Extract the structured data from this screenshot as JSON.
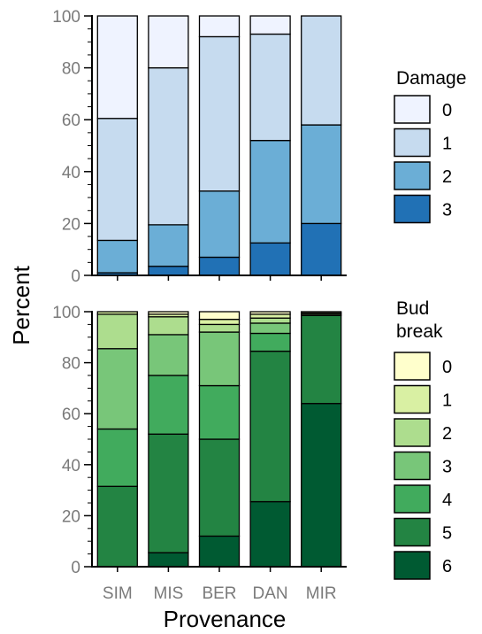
{
  "chart_data": [
    {
      "type": "bar",
      "stacked": true,
      "categories": [
        "SIM",
        "MIS",
        "BER",
        "DAN",
        "MIR"
      ],
      "ylabel": "Percent",
      "ylim": [
        0,
        100
      ],
      "yticks": [
        0,
        20,
        40,
        60,
        80,
        100
      ],
      "legend_title": "Damage",
      "legend_position": "right",
      "series": [
        {
          "name": "3",
          "color": "#2171b5",
          "values": [
            1,
            3.5,
            7,
            12.5,
            20
          ]
        },
        {
          "name": "2",
          "color": "#6baed6",
          "values": [
            12.5,
            16,
            25.5,
            39.5,
            38
          ]
        },
        {
          "name": "1",
          "color": "#c6dbef",
          "values": [
            47,
            60.5,
            59.5,
            41,
            42
          ]
        },
        {
          "name": "0",
          "color": "#eff3ff",
          "values": [
            39.5,
            20,
            8,
            7,
            0
          ]
        }
      ]
    },
    {
      "type": "bar",
      "stacked": true,
      "categories": [
        "SIM",
        "MIS",
        "BER",
        "DAN",
        "MIR"
      ],
      "ylabel": "Percent",
      "xlabel": "Provenance",
      "ylim": [
        0,
        100
      ],
      "yticks": [
        0,
        20,
        40,
        60,
        80,
        100
      ],
      "legend_title": [
        "Bud",
        "break"
      ],
      "legend_position": "right",
      "series": [
        {
          "name": "6",
          "color": "#005a32",
          "values": [
            0,
            5.5,
            12,
            25.5,
            64
          ]
        },
        {
          "name": "5",
          "color": "#238443",
          "values": [
            31.5,
            46.5,
            38,
            59,
            34.5
          ]
        },
        {
          "name": "4",
          "color": "#41ab5d",
          "values": [
            22.5,
            23,
            21,
            7,
            0
          ]
        },
        {
          "name": "3",
          "color": "#78c679",
          "values": [
            31.5,
            16,
            21,
            4,
            0
          ]
        },
        {
          "name": "2",
          "color": "#addd8e",
          "values": [
            13.5,
            7,
            3,
            2,
            0.5
          ]
        },
        {
          "name": "1",
          "color": "#d9f0a3",
          "values": [
            1,
            1,
            2,
            1.5,
            0.5
          ]
        },
        {
          "name": "0",
          "color": "#ffffcc",
          "values": [
            0,
            1,
            3,
            1,
            0.5
          ]
        }
      ]
    }
  ]
}
